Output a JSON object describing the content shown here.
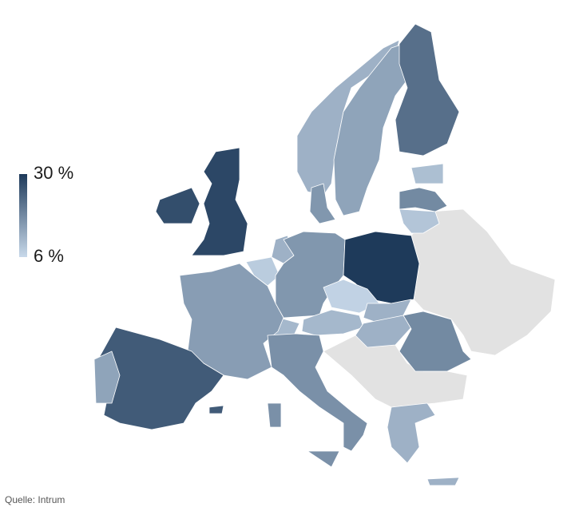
{
  "legend": {
    "ticks": [
      {
        "value": 30,
        "label": "30 %"
      },
      {
        "value": 6,
        "label": "6 %"
      }
    ]
  },
  "map": {
    "values": [
      12,
      14,
      22,
      10,
      18,
      9,
      16,
      28,
      27,
      12,
      8,
      16,
      30,
      7,
      12,
      11,
      12,
      18,
      11,
      15,
      17,
      25,
      14,
      12
    ]
  },
  "source": "Quelle: Intrum"
}
